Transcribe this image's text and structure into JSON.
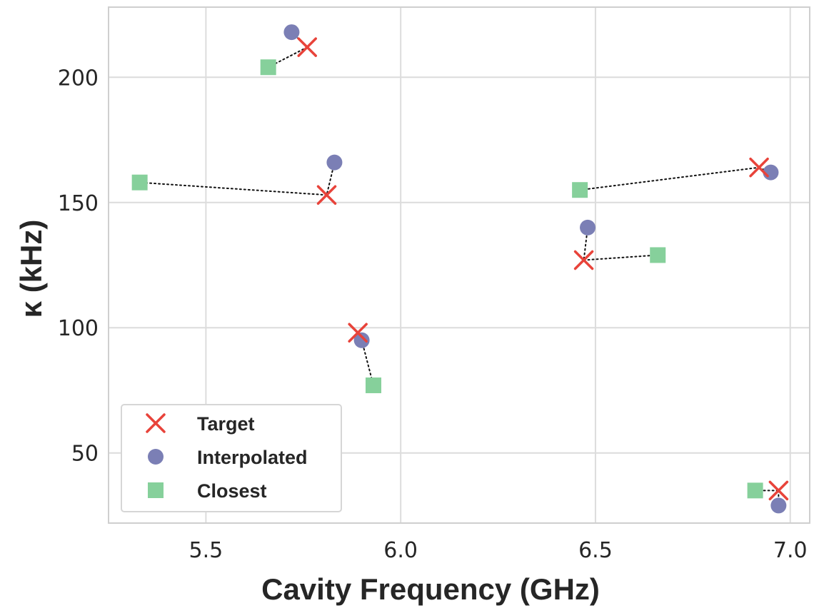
{
  "chart_data": {
    "type": "scatter",
    "title": "",
    "xlabel": "Cavity Frequency (GHz)",
    "ylabel": "κ (kHz)",
    "xlim": [
      5.25,
      7.05
    ],
    "ylim": [
      22,
      228
    ],
    "xticks": [
      5.5,
      6.0,
      6.5,
      7.0
    ],
    "yticks": [
      50,
      100,
      150,
      200
    ],
    "xtick_labels": [
      "5.5",
      "6.0",
      "6.5",
      "7.0"
    ],
    "ytick_labels": [
      "50",
      "100",
      "150",
      "200"
    ],
    "grid": true,
    "legend_position": "lower-left",
    "series": [
      {
        "name": "Target",
        "marker": "x",
        "color": "#e8433a",
        "points": [
          [
            5.76,
            212
          ],
          [
            5.81,
            153
          ],
          [
            5.89,
            98
          ],
          [
            6.47,
            127
          ],
          [
            6.92,
            164
          ],
          [
            6.97,
            35
          ]
        ]
      },
      {
        "name": "Interpolated",
        "marker": "circle",
        "color": "#7b7fb5",
        "points": [
          [
            5.72,
            218
          ],
          [
            5.83,
            166
          ],
          [
            5.9,
            95
          ],
          [
            6.48,
            140
          ],
          [
            6.95,
            162
          ],
          [
            6.97,
            29
          ]
        ]
      },
      {
        "name": "Closest",
        "marker": "square",
        "color": "#86d09b",
        "points": [
          [
            5.66,
            204
          ],
          [
            5.33,
            158
          ],
          [
            5.93,
            77
          ],
          [
            6.66,
            129
          ],
          [
            6.46,
            155
          ],
          [
            6.91,
            35
          ]
        ]
      }
    ],
    "connectors": [
      {
        "from": [
          5.72,
          218
        ],
        "to": [
          5.76,
          212
        ]
      },
      {
        "from": [
          5.76,
          212
        ],
        "to": [
          5.66,
          204
        ]
      },
      {
        "from": [
          5.83,
          166
        ],
        "to": [
          5.81,
          153
        ]
      },
      {
        "from": [
          5.81,
          153
        ],
        "to": [
          5.33,
          158
        ]
      },
      {
        "from": [
          5.89,
          98
        ],
        "to": [
          5.9,
          95
        ]
      },
      {
        "from": [
          5.9,
          95
        ],
        "to": [
          5.93,
          77
        ]
      },
      {
        "from": [
          6.48,
          140
        ],
        "to": [
          6.47,
          127
        ]
      },
      {
        "from": [
          6.47,
          127
        ],
        "to": [
          6.66,
          129
        ]
      },
      {
        "from": [
          6.46,
          155
        ],
        "to": [
          6.92,
          164
        ]
      },
      {
        "from": [
          6.92,
          164
        ],
        "to": [
          6.95,
          162
        ]
      },
      {
        "from": [
          6.91,
          35
        ],
        "to": [
          6.97,
          35
        ]
      },
      {
        "from": [
          6.97,
          35
        ],
        "to": [
          6.97,
          29
        ]
      }
    ]
  }
}
